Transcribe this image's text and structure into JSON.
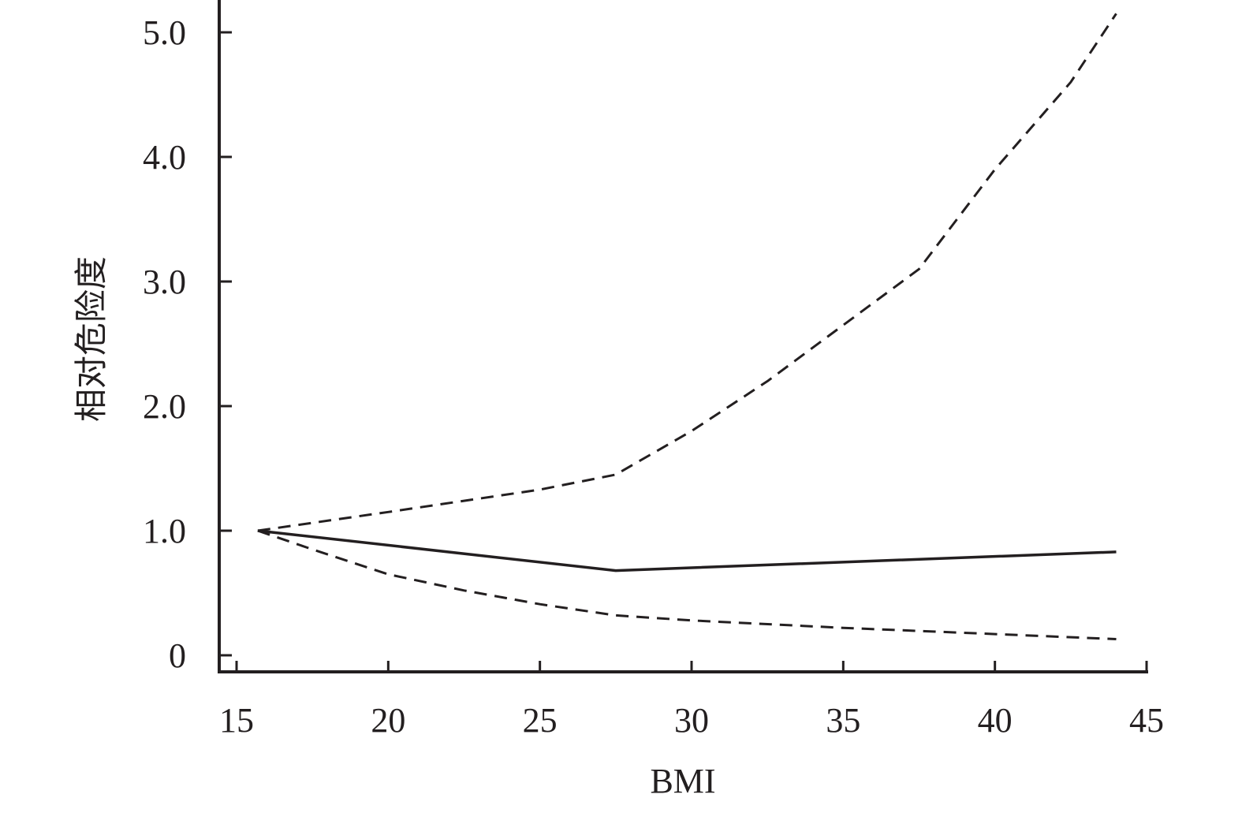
{
  "chart_data": {
    "type": "line",
    "title": "",
    "xlabel": "BMI",
    "ylabel": "相对危险度",
    "xlim": [
      15,
      45
    ],
    "ylim": [
      0,
      5.0
    ],
    "x_ticks": [
      15,
      20,
      25,
      30,
      35,
      40,
      45
    ],
    "x_tick_labels": [
      "15",
      "20",
      "25",
      "30",
      "35",
      "40",
      "45"
    ],
    "y_ticks": [
      0,
      1.0,
      2.0,
      3.0,
      4.0,
      5.0
    ],
    "y_tick_labels": [
      "0",
      "1.0",
      "2.0",
      "3.0",
      "4.0",
      "5.0"
    ],
    "grid": false,
    "line_color": "#231f20",
    "series": [
      {
        "style": "solid",
        "x": [
          15.7,
          27.5,
          44
        ],
        "y": [
          1.0,
          0.68,
          0.83
        ]
      },
      {
        "style": "dashed",
        "x": [
          15.7,
          20,
          25,
          27.5,
          30,
          32.5,
          35,
          37.5,
          40,
          42.5,
          44
        ],
        "y": [
          1.0,
          1.15,
          1.33,
          1.45,
          1.8,
          2.2,
          2.65,
          3.1,
          3.9,
          4.6,
          5.15
        ]
      },
      {
        "style": "dashed",
        "x": [
          15.7,
          17.5,
          20,
          22.5,
          25,
          27.5,
          30,
          35,
          40,
          44
        ],
        "y": [
          1.0,
          0.85,
          0.65,
          0.52,
          0.41,
          0.32,
          0.28,
          0.22,
          0.17,
          0.13
        ]
      }
    ]
  }
}
